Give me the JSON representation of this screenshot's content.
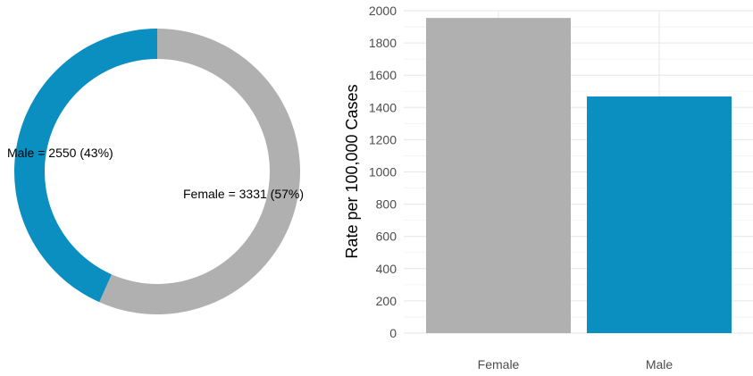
{
  "chart_data": [
    {
      "type": "pie",
      "style": "donut",
      "slices": [
        {
          "category": "Female",
          "value": 3331,
          "percent": 57,
          "label": "Female = 3331 (57%)",
          "color": "#b0b0b0"
        },
        {
          "category": "Male",
          "value": 2550,
          "percent": 43,
          "label": "Male = 2550 (43%)",
          "color": "#0b8fc0"
        }
      ],
      "title": "",
      "legend": "none"
    },
    {
      "type": "bar",
      "categories": [
        "Female",
        "Male"
      ],
      "values": [
        1955,
        1468
      ],
      "colors": [
        "#b0b0b0",
        "#0b8fc0"
      ],
      "title": "",
      "xlabel": "",
      "ylabel": "Rate per 100,000 Cases",
      "ylim": [
        0,
        2000
      ],
      "yticks": [
        0,
        200,
        400,
        600,
        800,
        1000,
        1200,
        1400,
        1600,
        1800,
        2000
      ],
      "grid": true,
      "legend": "none"
    }
  ]
}
